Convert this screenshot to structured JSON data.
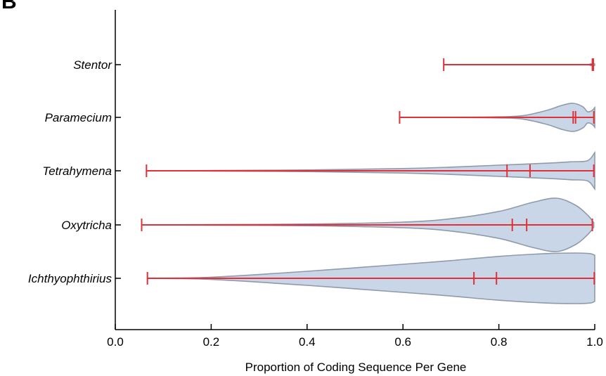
{
  "panel_label": "B",
  "chart_data": {
    "type": "violin",
    "title": "",
    "xlabel": "Proportion of Coding Sequence Per Gene",
    "ylabel": "",
    "xlim": [
      0.0,
      1.0
    ],
    "xticks": [
      "0.0",
      "0.2",
      "0.4",
      "0.6",
      "0.8",
      "1.0"
    ],
    "xtick_values": [
      0.0,
      0.2,
      0.4,
      0.6,
      0.8,
      1.0
    ],
    "grid": false,
    "colors": {
      "violin_fill": "#c9d6e8",
      "violin_stroke": "#8f9bab",
      "whisker": "#e0303a",
      "axis": "#000000"
    },
    "categories": [
      "Stentor",
      "Paramecium",
      "Tetrahymena",
      "Oxytricha",
      "Ichthyophthirius"
    ],
    "series": [
      {
        "name": "Stentor",
        "min": 0.685,
        "max": 0.997,
        "median": 0.996,
        "mean": 0.995,
        "density": [
          [
            0.685,
            0
          ],
          [
            0.9,
            0
          ],
          [
            0.98,
            0
          ],
          [
            0.99,
            0.02
          ],
          [
            0.997,
            0.05
          ],
          [
            1.0,
            0.02
          ]
        ]
      },
      {
        "name": "Paramecium",
        "min": 0.593,
        "max": 0.998,
        "median": 0.96,
        "mean": 0.955,
        "density": [
          [
            0.593,
            0
          ],
          [
            0.7,
            0.005
          ],
          [
            0.8,
            0.02
          ],
          [
            0.85,
            0.06
          ],
          [
            0.9,
            0.25
          ],
          [
            0.93,
            0.42
          ],
          [
            0.955,
            0.5
          ],
          [
            0.975,
            0.38
          ],
          [
            0.985,
            0.2
          ],
          [
            0.995,
            0.25
          ],
          [
            1.0,
            0.35
          ]
        ]
      },
      {
        "name": "Tetrahymena",
        "min": 0.065,
        "max": 0.998,
        "median": 0.865,
        "mean": 0.817,
        "density": [
          [
            0.065,
            0
          ],
          [
            0.2,
            0.01
          ],
          [
            0.4,
            0.03
          ],
          [
            0.6,
            0.08
          ],
          [
            0.7,
            0.13
          ],
          [
            0.8,
            0.2
          ],
          [
            0.9,
            0.27
          ],
          [
            0.95,
            0.32
          ],
          [
            0.985,
            0.36
          ],
          [
            1.0,
            0.65
          ]
        ]
      },
      {
        "name": "Oxytricha",
        "min": 0.055,
        "max": 0.995,
        "median": 0.858,
        "mean": 0.828,
        "density": [
          [
            0.055,
            0
          ],
          [
            0.2,
            0.01
          ],
          [
            0.4,
            0.03
          ],
          [
            0.6,
            0.1
          ],
          [
            0.7,
            0.22
          ],
          [
            0.8,
            0.48
          ],
          [
            0.87,
            0.8
          ],
          [
            0.92,
            0.95
          ],
          [
            0.96,
            0.7
          ],
          [
            0.985,
            0.35
          ],
          [
            0.998,
            0.08
          ]
        ]
      },
      {
        "name": "Ichthyophthirius",
        "min": 0.067,
        "max": 0.999,
        "median": 0.795,
        "mean": 0.748,
        "density": [
          [
            0.067,
            0
          ],
          [
            0.2,
            0.04
          ],
          [
            0.4,
            0.25
          ],
          [
            0.6,
            0.5
          ],
          [
            0.7,
            0.63
          ],
          [
            0.8,
            0.78
          ],
          [
            0.9,
            0.88
          ],
          [
            0.96,
            0.9
          ],
          [
            0.99,
            0.88
          ],
          [
            1.0,
            0.82
          ]
        ]
      }
    ]
  }
}
